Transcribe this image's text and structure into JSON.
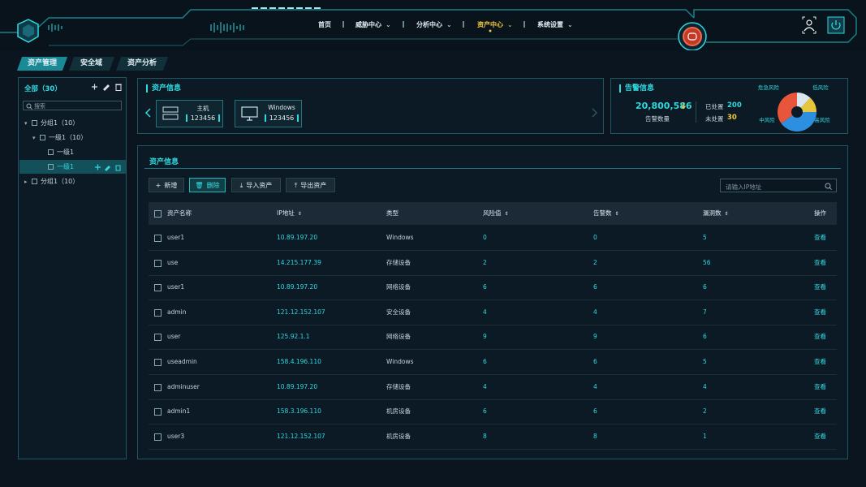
{
  "nav": [
    {
      "label": "首页",
      "dropdown": false,
      "active": false
    },
    {
      "label": "威胁中心",
      "dropdown": true,
      "active": false
    },
    {
      "label": "分析中心",
      "dropdown": true,
      "active": false
    },
    {
      "label": "资产中心",
      "dropdown": true,
      "active": true
    },
    {
      "label": "系统设置",
      "dropdown": true,
      "active": false
    }
  ],
  "tabs": [
    {
      "label": "资产管理",
      "active": true
    },
    {
      "label": "安全域",
      "active": false
    },
    {
      "label": "资产分析",
      "active": false
    }
  ],
  "tree": {
    "title": "全部（30）",
    "search_placeholder": "搜索",
    "nodes": [
      {
        "label": "分组1（10）",
        "level": 0,
        "toggle": "open",
        "selected": false
      },
      {
        "label": "一级1（10）",
        "level": 1,
        "toggle": "open",
        "selected": false
      },
      {
        "label": "一级1",
        "level": 2,
        "toggle": "none",
        "selected": false
      },
      {
        "label": "一级1",
        "level": 2,
        "toggle": "none",
        "selected": true
      },
      {
        "label": "分组1（10）",
        "level": 0,
        "toggle": "closed",
        "selected": false
      }
    ]
  },
  "asset_info": {
    "title": "资产信息",
    "cards": [
      {
        "label": "主机",
        "value": 123456,
        "icon": "server"
      },
      {
        "label": "Windows",
        "value": 123456,
        "icon": "monitor"
      }
    ]
  },
  "alert_info": {
    "title": "告警信息",
    "count": "20,800,586",
    "count_label": "告警数量",
    "handled_label": "已处置",
    "handled": 200,
    "unhandled_label": "未处置",
    "unhandled": 30,
    "pie": {
      "type": "pie",
      "series": [
        {
          "name": "危急风险",
          "color": "#e8553a",
          "value": 35
        },
        {
          "name": "低风险",
          "color": "#d9e6ee",
          "value": 12
        },
        {
          "name": "高风险",
          "color": "#e6c63a",
          "value": 13
        },
        {
          "name": "中风险",
          "color": "#2d8fe0",
          "value": 40
        }
      ]
    }
  },
  "table": {
    "title": "资产信息",
    "buttons": [
      {
        "label": "新增",
        "primary": false
      },
      {
        "label": "删除",
        "primary": true
      },
      {
        "label": "导入资产",
        "primary": false
      },
      {
        "label": "导出资产",
        "primary": false
      }
    ],
    "search_placeholder": "请输入IP地址",
    "columns": [
      {
        "label": "资产名称",
        "sortable": false
      },
      {
        "label": "IP地址",
        "sortable": true
      },
      {
        "label": "类型",
        "sortable": false
      },
      {
        "label": "风险值",
        "sortable": true
      },
      {
        "label": "告警数",
        "sortable": true
      },
      {
        "label": "漏洞数",
        "sortable": true
      },
      {
        "label": "操作",
        "sortable": false
      }
    ],
    "rows": [
      [
        "user1",
        "10.89.197.20",
        "Windows",
        0,
        0,
        5,
        "查看"
      ],
      [
        "use",
        "14.215.177.39",
        "存储设备",
        2,
        2,
        56,
        "查看"
      ],
      [
        "user1",
        "10.89.197.20",
        "网络设备",
        6,
        6,
        6,
        "查看"
      ],
      [
        "admin",
        "121.12.152.107",
        "安全设备",
        4,
        4,
        7,
        "查看"
      ],
      [
        "user",
        "125.92.1.1",
        "网络设备",
        9,
        9,
        6,
        "查看"
      ],
      [
        "useadmin",
        "158.4.196.110",
        "Windows",
        6,
        6,
        5,
        "查看"
      ],
      [
        "adminuser",
        "10.89.197.20",
        "存储设备",
        4,
        4,
        4,
        "查看"
      ],
      [
        "admin1",
        "158.3.196.110",
        "机房设备",
        6,
        6,
        2,
        "查看"
      ],
      [
        "user3",
        "121.12.152.107",
        "机房设备",
        8,
        8,
        1,
        "查看"
      ]
    ]
  }
}
